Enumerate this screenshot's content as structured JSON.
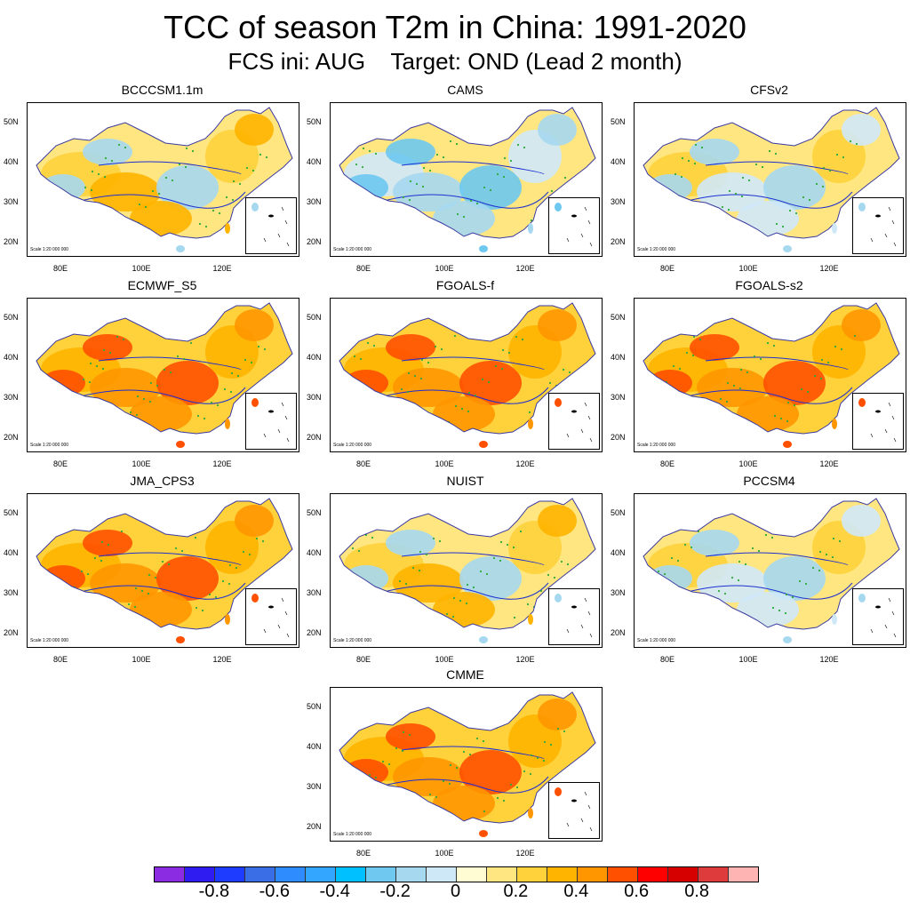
{
  "title": "TCC of season T2m in China: 1991-2020",
  "subtitle": "FCS ini: AUG    Target: OND (Lead 2 month)",
  "scale_text": "Scale 1:20 000 000",
  "y_ticks": [
    "50N",
    "40N",
    "30N",
    "20N"
  ],
  "x_ticks": [
    "80E",
    "100E",
    "120E"
  ],
  "panels": [
    {
      "label": "BCCCSM1.1m",
      "tone": "warm-mixed"
    },
    {
      "label": "CAMS",
      "tone": "cool"
    },
    {
      "label": "CFSv2",
      "tone": "mixed"
    },
    {
      "label": "ECMWF_S5",
      "tone": "warm"
    },
    {
      "label": "FGOALS-f",
      "tone": "warm"
    },
    {
      "label": "FGOALS-s2",
      "tone": "warm"
    },
    {
      "label": "JMA_CPS3",
      "tone": "warm"
    },
    {
      "label": "NUIST",
      "tone": "warm-mixed"
    },
    {
      "label": "PCCSM4",
      "tone": "mixed"
    },
    {
      "label": "CMME",
      "tone": "warm"
    }
  ],
  "colorbar": {
    "colors": [
      "#8b2be2",
      "#2f1cf0",
      "#1e3cff",
      "#3a6ee6",
      "#2f8cff",
      "#33a6ff",
      "#00c0ff",
      "#6ec8f0",
      "#a6d8f0",
      "#cfe8f8",
      "#fffbd2",
      "#ffe680",
      "#ffd23c",
      "#ffb400",
      "#ff9600",
      "#ff5000",
      "#ff0000",
      "#d60000",
      "#de3c3c",
      "#ffb4b4"
    ],
    "labels": [
      "-0.8",
      "-0.6",
      "-0.4",
      "-0.2",
      "0",
      "0.2",
      "0.4",
      "0.6",
      "0.8"
    ]
  }
}
